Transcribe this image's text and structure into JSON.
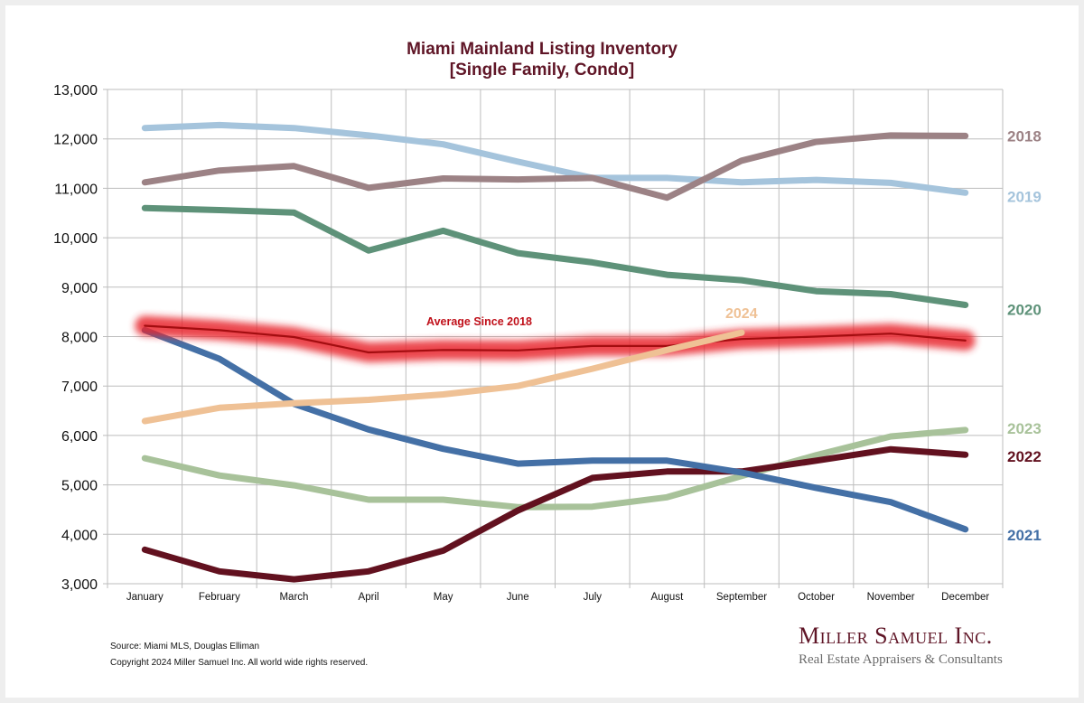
{
  "chart_data": {
    "type": "line",
    "title": "Miami Mainland Listing Inventory",
    "subtitle": "[Single Family, Condo]",
    "xlabel": "",
    "ylabel": "",
    "ylim": [
      3000,
      13000
    ],
    "yticks": [
      3000,
      4000,
      5000,
      6000,
      7000,
      8000,
      9000,
      10000,
      11000,
      12000,
      13000
    ],
    "ytick_labels": [
      "3,000",
      "4,000",
      "5,000",
      "6,000",
      "7,000",
      "8,000",
      "9,000",
      "10,000",
      "11,000",
      "12,000",
      "13,000"
    ],
    "grid": true,
    "legend": "inline-right",
    "categories": [
      "January",
      "February",
      "March",
      "April",
      "May",
      "June",
      "July",
      "August",
      "September",
      "October",
      "November",
      "December"
    ],
    "series": [
      {
        "name": "2018",
        "color": "#9c8285",
        "values": [
          11120,
          11360,
          11450,
          11010,
          11200,
          11180,
          11210,
          10810,
          11560,
          11940,
          12070,
          12060
        ]
      },
      {
        "name": "2019",
        "color": "#a5c4dc",
        "values": [
          12220,
          12280,
          12220,
          12070,
          11890,
          11540,
          11210,
          11210,
          11120,
          11170,
          11110,
          10910
        ]
      },
      {
        "name": "2020",
        "color": "#5e9279",
        "values": [
          10600,
          10560,
          10510,
          9740,
          10140,
          9690,
          9500,
          9250,
          9140,
          8920,
          8860,
          8640
        ]
      },
      {
        "name": "2021",
        "color": "#4470a6",
        "values": [
          8130,
          7550,
          6640,
          6120,
          5730,
          5430,
          5490,
          5490,
          5250,
          4940,
          4650,
          4100
        ]
      },
      {
        "name": "2022",
        "color": "#62111f",
        "values": [
          3690,
          3250,
          3090,
          3250,
          3670,
          4480,
          5140,
          5270,
          5270,
          5490,
          5720,
          5610
        ]
      },
      {
        "name": "2023",
        "color": "#a8c29a",
        "values": [
          5540,
          5190,
          4990,
          4700,
          4700,
          4550,
          4560,
          4750,
          5180,
          5600,
          5980,
          6110
        ]
      },
      {
        "name": "2024",
        "color": "#efc195",
        "values": [
          6290,
          6560,
          6650,
          6720,
          6830,
          7000,
          7350,
          7730,
          8080,
          null,
          null,
          null
        ]
      },
      {
        "name": "Average Since 2018",
        "color": "#c0101a",
        "highlight": true,
        "values": [
          8220,
          8130,
          7990,
          7680,
          7730,
          7720,
          7810,
          7810,
          7950,
          8000,
          8060,
          7920
        ]
      }
    ],
    "annotations": [
      {
        "text": "Average  Since 2018",
        "series": "Average Since 2018"
      },
      {
        "text": "2024",
        "series": "2024"
      }
    ]
  },
  "footer": {
    "source": "Source: Miami MLS, Douglas Elliman",
    "copyright": "Copyright 2024 Miller Samuel Inc.  All world wide rights reserved."
  },
  "logo": {
    "brand": "Miller Samuel Inc.",
    "tagline": "Real Estate Appraisers & Consultants"
  }
}
